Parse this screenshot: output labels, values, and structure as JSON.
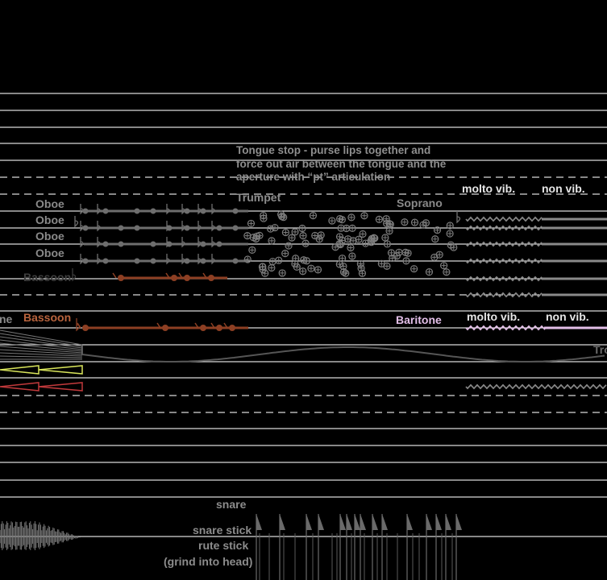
{
  "score": {
    "instructions": {
      "tongue_stop": "Tongue stop - purse lips together and force out air between the tongue and the aperture with “pt” articulation"
    },
    "labels": {
      "oboe": [
        "Oboe",
        "Oboe",
        "Oboe",
        "Oboe"
      ],
      "trumpet": "Trumpet",
      "soprano": "Soprano",
      "bassoon_faint": "Bassoon",
      "bassoon": "Bassoon",
      "baritone": "Baritone",
      "ne_fragment": "ne",
      "tro_fragment": "Tro"
    },
    "vibrato": {
      "upper_molto": "molto vib.",
      "upper_non": "non vib.",
      "lower_molto": "molto vib.",
      "lower_non": "non vib."
    },
    "percussion": {
      "snare": "snare",
      "snare_stick": "snare stick",
      "rute_stick": "rute stick",
      "grind": "(grind into head)"
    }
  },
  "colors": {
    "background": "#000000",
    "staff_line": "#d9d9d9",
    "text_grey": "#8c8c8c",
    "bassoon_brown": "#a9512f",
    "baritone_pink": "#e3bfe8",
    "yellow_wedge": "#d7e35a",
    "red_wedge": "#c0393b"
  }
}
